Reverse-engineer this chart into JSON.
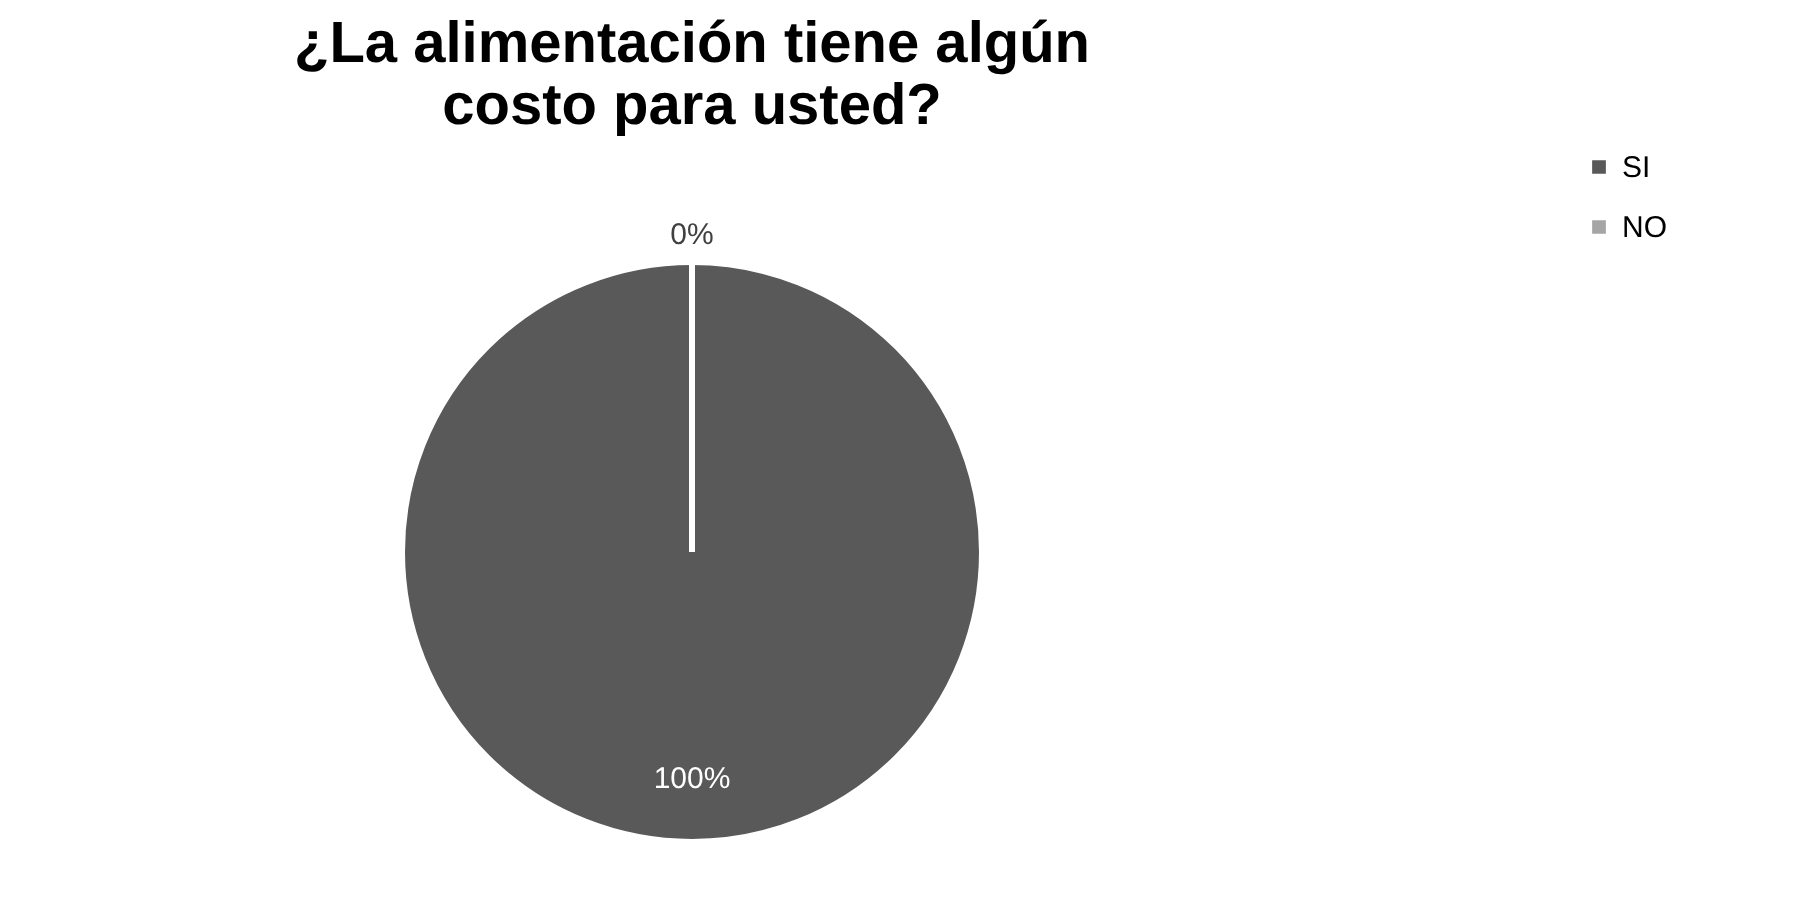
{
  "chart_data": {
    "type": "pie",
    "title": "¿La alimentación tiene algún costo para usted?",
    "categories": [
      "SI",
      "NO"
    ],
    "values": [
      100,
      0
    ],
    "colors": [
      "#595959",
      "#a5a5a5"
    ],
    "value_labels": [
      "100%",
      "0%"
    ],
    "legend": "right"
  }
}
